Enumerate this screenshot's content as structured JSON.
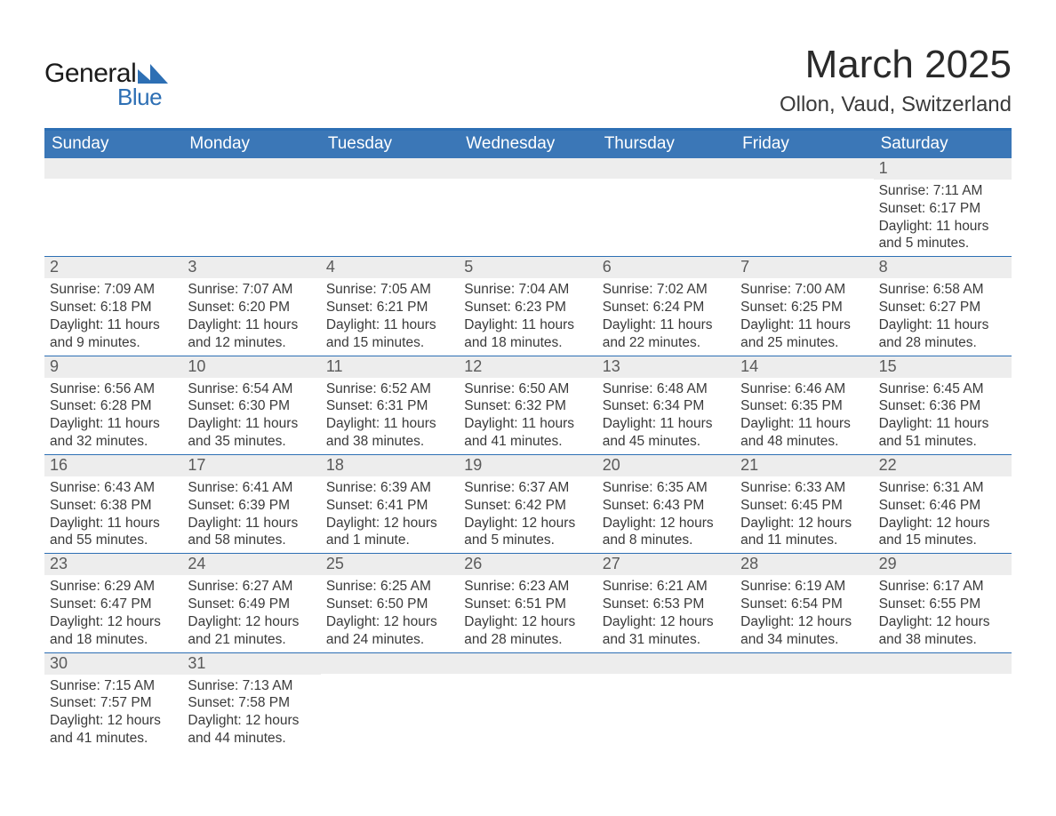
{
  "logo": {
    "text1": "General",
    "text2": "Blue",
    "mark_color": "#2d6fb4"
  },
  "title": "March 2025",
  "location": "Ollon, Vaud, Switzerland",
  "colors": {
    "header_bg": "#3b77b7",
    "header_border": "#2d6fb4",
    "daynum_bg": "#ededed",
    "text": "#3a3a3a",
    "day_header_text": "#ffffff"
  },
  "typography": {
    "title_fontsize": 44,
    "location_fontsize": 24,
    "dayheader_fontsize": 19,
    "daynum_fontsize": 18,
    "body_fontsize": 15.5
  },
  "day_headers": [
    "Sunday",
    "Monday",
    "Tuesday",
    "Wednesday",
    "Thursday",
    "Friday",
    "Saturday"
  ],
  "weeks": [
    [
      {
        "n": "",
        "sunrise": "",
        "sunset": "",
        "daylight": ""
      },
      {
        "n": "",
        "sunrise": "",
        "sunset": "",
        "daylight": ""
      },
      {
        "n": "",
        "sunrise": "",
        "sunset": "",
        "daylight": ""
      },
      {
        "n": "",
        "sunrise": "",
        "sunset": "",
        "daylight": ""
      },
      {
        "n": "",
        "sunrise": "",
        "sunset": "",
        "daylight": ""
      },
      {
        "n": "",
        "sunrise": "",
        "sunset": "",
        "daylight": ""
      },
      {
        "n": "1",
        "sunrise": "Sunrise: 7:11 AM",
        "sunset": "Sunset: 6:17 PM",
        "daylight": "Daylight: 11 hours and 5 minutes."
      }
    ],
    [
      {
        "n": "2",
        "sunrise": "Sunrise: 7:09 AM",
        "sunset": "Sunset: 6:18 PM",
        "daylight": "Daylight: 11 hours and 9 minutes."
      },
      {
        "n": "3",
        "sunrise": "Sunrise: 7:07 AM",
        "sunset": "Sunset: 6:20 PM",
        "daylight": "Daylight: 11 hours and 12 minutes."
      },
      {
        "n": "4",
        "sunrise": "Sunrise: 7:05 AM",
        "sunset": "Sunset: 6:21 PM",
        "daylight": "Daylight: 11 hours and 15 minutes."
      },
      {
        "n": "5",
        "sunrise": "Sunrise: 7:04 AM",
        "sunset": "Sunset: 6:23 PM",
        "daylight": "Daylight: 11 hours and 18 minutes."
      },
      {
        "n": "6",
        "sunrise": "Sunrise: 7:02 AM",
        "sunset": "Sunset: 6:24 PM",
        "daylight": "Daylight: 11 hours and 22 minutes."
      },
      {
        "n": "7",
        "sunrise": "Sunrise: 7:00 AM",
        "sunset": "Sunset: 6:25 PM",
        "daylight": "Daylight: 11 hours and 25 minutes."
      },
      {
        "n": "8",
        "sunrise": "Sunrise: 6:58 AM",
        "sunset": "Sunset: 6:27 PM",
        "daylight": "Daylight: 11 hours and 28 minutes."
      }
    ],
    [
      {
        "n": "9",
        "sunrise": "Sunrise: 6:56 AM",
        "sunset": "Sunset: 6:28 PM",
        "daylight": "Daylight: 11 hours and 32 minutes."
      },
      {
        "n": "10",
        "sunrise": "Sunrise: 6:54 AM",
        "sunset": "Sunset: 6:30 PM",
        "daylight": "Daylight: 11 hours and 35 minutes."
      },
      {
        "n": "11",
        "sunrise": "Sunrise: 6:52 AM",
        "sunset": "Sunset: 6:31 PM",
        "daylight": "Daylight: 11 hours and 38 minutes."
      },
      {
        "n": "12",
        "sunrise": "Sunrise: 6:50 AM",
        "sunset": "Sunset: 6:32 PM",
        "daylight": "Daylight: 11 hours and 41 minutes."
      },
      {
        "n": "13",
        "sunrise": "Sunrise: 6:48 AM",
        "sunset": "Sunset: 6:34 PM",
        "daylight": "Daylight: 11 hours and 45 minutes."
      },
      {
        "n": "14",
        "sunrise": "Sunrise: 6:46 AM",
        "sunset": "Sunset: 6:35 PM",
        "daylight": "Daylight: 11 hours and 48 minutes."
      },
      {
        "n": "15",
        "sunrise": "Sunrise: 6:45 AM",
        "sunset": "Sunset: 6:36 PM",
        "daylight": "Daylight: 11 hours and 51 minutes."
      }
    ],
    [
      {
        "n": "16",
        "sunrise": "Sunrise: 6:43 AM",
        "sunset": "Sunset: 6:38 PM",
        "daylight": "Daylight: 11 hours and 55 minutes."
      },
      {
        "n": "17",
        "sunrise": "Sunrise: 6:41 AM",
        "sunset": "Sunset: 6:39 PM",
        "daylight": "Daylight: 11 hours and 58 minutes."
      },
      {
        "n": "18",
        "sunrise": "Sunrise: 6:39 AM",
        "sunset": "Sunset: 6:41 PM",
        "daylight": "Daylight: 12 hours and 1 minute."
      },
      {
        "n": "19",
        "sunrise": "Sunrise: 6:37 AM",
        "sunset": "Sunset: 6:42 PM",
        "daylight": "Daylight: 12 hours and 5 minutes."
      },
      {
        "n": "20",
        "sunrise": "Sunrise: 6:35 AM",
        "sunset": "Sunset: 6:43 PM",
        "daylight": "Daylight: 12 hours and 8 minutes."
      },
      {
        "n": "21",
        "sunrise": "Sunrise: 6:33 AM",
        "sunset": "Sunset: 6:45 PM",
        "daylight": "Daylight: 12 hours and 11 minutes."
      },
      {
        "n": "22",
        "sunrise": "Sunrise: 6:31 AM",
        "sunset": "Sunset: 6:46 PM",
        "daylight": "Daylight: 12 hours and 15 minutes."
      }
    ],
    [
      {
        "n": "23",
        "sunrise": "Sunrise: 6:29 AM",
        "sunset": "Sunset: 6:47 PM",
        "daylight": "Daylight: 12 hours and 18 minutes."
      },
      {
        "n": "24",
        "sunrise": "Sunrise: 6:27 AM",
        "sunset": "Sunset: 6:49 PM",
        "daylight": "Daylight: 12 hours and 21 minutes."
      },
      {
        "n": "25",
        "sunrise": "Sunrise: 6:25 AM",
        "sunset": "Sunset: 6:50 PM",
        "daylight": "Daylight: 12 hours and 24 minutes."
      },
      {
        "n": "26",
        "sunrise": "Sunrise: 6:23 AM",
        "sunset": "Sunset: 6:51 PM",
        "daylight": "Daylight: 12 hours and 28 minutes."
      },
      {
        "n": "27",
        "sunrise": "Sunrise: 6:21 AM",
        "sunset": "Sunset: 6:53 PM",
        "daylight": "Daylight: 12 hours and 31 minutes."
      },
      {
        "n": "28",
        "sunrise": "Sunrise: 6:19 AM",
        "sunset": "Sunset: 6:54 PM",
        "daylight": "Daylight: 12 hours and 34 minutes."
      },
      {
        "n": "29",
        "sunrise": "Sunrise: 6:17 AM",
        "sunset": "Sunset: 6:55 PM",
        "daylight": "Daylight: 12 hours and 38 minutes."
      }
    ],
    [
      {
        "n": "30",
        "sunrise": "Sunrise: 7:15 AM",
        "sunset": "Sunset: 7:57 PM",
        "daylight": "Daylight: 12 hours and 41 minutes."
      },
      {
        "n": "31",
        "sunrise": "Sunrise: 7:13 AM",
        "sunset": "Sunset: 7:58 PM",
        "daylight": "Daylight: 12 hours and 44 minutes."
      },
      {
        "n": "",
        "sunrise": "",
        "sunset": "",
        "daylight": ""
      },
      {
        "n": "",
        "sunrise": "",
        "sunset": "",
        "daylight": ""
      },
      {
        "n": "",
        "sunrise": "",
        "sunset": "",
        "daylight": ""
      },
      {
        "n": "",
        "sunrise": "",
        "sunset": "",
        "daylight": ""
      },
      {
        "n": "",
        "sunrise": "",
        "sunset": "",
        "daylight": ""
      }
    ]
  ]
}
